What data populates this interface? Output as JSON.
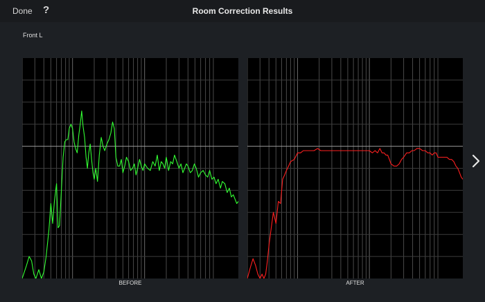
{
  "header": {
    "done_label": "Done",
    "help_label": "?",
    "title": "Room Correction Results"
  },
  "speaker": "Front L",
  "icons": {
    "next": "chevron-right-icon"
  },
  "colors": {
    "before_curve": "#33ff33",
    "after_curve": "#ff2020",
    "background": "#1d2024",
    "plot_bg": "#000000"
  },
  "chart_data": [
    {
      "type": "line",
      "caption": "BEFORE",
      "x_scale": "log",
      "xlim": [
        20,
        20000
      ],
      "ylim": [
        0,
        10
      ],
      "grid": true,
      "reference_line_y": 6,
      "series": [
        {
          "color": "#33ff33",
          "x": [
            20,
            23,
            25,
            27,
            29,
            31,
            34,
            37,
            40,
            43,
            47,
            50,
            53,
            56,
            60,
            63,
            66,
            70,
            74,
            78,
            82,
            86,
            90,
            95,
            100,
            105,
            110,
            116,
            122,
            128,
            134,
            140,
            147,
            154,
            161,
            168,
            176,
            184,
            192,
            200,
            210,
            222,
            235,
            250,
            265,
            280,
            300,
            320,
            340,
            360,
            380,
            400,
            425,
            450,
            475,
            500,
            530,
            560,
            600,
            640,
            680,
            720,
            760,
            800,
            850,
            900,
            950,
            1000,
            1100,
            1200,
            1300,
            1400,
            1500,
            1600,
            1700,
            1800,
            1900,
            2000,
            2150,
            2300,
            2450,
            2600,
            2800,
            3000,
            3200,
            3400,
            3600,
            3800,
            4000,
            4300,
            4600,
            4900,
            5200,
            5600,
            6000,
            6500,
            7000,
            7500,
            8000,
            8600,
            9200,
            9800,
            10500,
            11300,
            12000,
            13000,
            14000,
            15000,
            16000,
            17000,
            18000,
            19000,
            20000
          ],
          "y": [
            0.0,
            0.6,
            1.0,
            0.8,
            0.2,
            0.0,
            0.4,
            0.0,
            0.3,
            1.0,
            2.2,
            3.4,
            2.5,
            3.5,
            4.3,
            2.3,
            2.4,
            4.0,
            5.5,
            6.2,
            6.3,
            6.3,
            6.8,
            7.0,
            6.8,
            6.2,
            5.9,
            5.7,
            6.5,
            7.0,
            7.6,
            6.9,
            6.4,
            5.5,
            5.0,
            5.7,
            6.1,
            5.4,
            4.8,
            4.5,
            5.0,
            4.4,
            5.6,
            6.4,
            6.0,
            5.8,
            6.1,
            6.3,
            6.6,
            7.1,
            6.8,
            5.5,
            5.1,
            5.1,
            5.4,
            4.8,
            5.1,
            5.5,
            5.3,
            4.9,
            5.0,
            5.2,
            4.7,
            5.0,
            5.4,
            5.1,
            4.9,
            5.2,
            5.0,
            4.9,
            5.3,
            5.1,
            5.6,
            4.9,
            5.3,
            5.2,
            5.0,
            5.5,
            4.9,
            5.3,
            5.2,
            5.6,
            5.3,
            5.0,
            5.2,
            4.8,
            5.0,
            5.2,
            5.1,
            4.8,
            4.9,
            5.2,
            5.0,
            4.6,
            4.8,
            4.9,
            4.7,
            4.6,
            4.9,
            4.5,
            4.6,
            4.3,
            4.5,
            4.1,
            4.4,
            4.3,
            3.9,
            4.1,
            3.7,
            3.8,
            3.6,
            3.4,
            3.5
          ]
        }
      ]
    },
    {
      "type": "line",
      "caption": "AFTER",
      "x_scale": "log",
      "xlim": [
        20,
        20000
      ],
      "ylim": [
        0,
        10
      ],
      "grid": true,
      "reference_line_y": 6,
      "series": [
        {
          "color": "#ff2020",
          "x": [
            20,
            22,
            24,
            26,
            28,
            30,
            32,
            34,
            36,
            38,
            40,
            43,
            46,
            50,
            54,
            58,
            62,
            66,
            70,
            75,
            80,
            90,
            100,
            110,
            120,
            135,
            150,
            170,
            190,
            210,
            240,
            270,
            300,
            350,
            400,
            450,
            500,
            550,
            600,
            650,
            700,
            750,
            800,
            850,
            900,
            950,
            1000,
            1100,
            1200,
            1300,
            1400,
            1500,
            1600,
            1700,
            1800,
            1900,
            2000,
            2200,
            2400,
            2600,
            2800,
            3000,
            3300,
            3600,
            3900,
            4200,
            4600,
            5000,
            5500,
            6000,
            6500,
            7000,
            7500,
            8000,
            8500,
            9000,
            9500,
            10000,
            11000,
            12000,
            13000,
            14000,
            15000,
            16000,
            17000,
            18000,
            19000,
            20000
          ],
          "y": [
            0.0,
            0.5,
            0.9,
            0.6,
            0.2,
            0.0,
            0.2,
            0.0,
            0.2,
            0.8,
            1.5,
            2.3,
            3.0,
            2.5,
            3.5,
            3.4,
            4.5,
            4.7,
            4.9,
            5.1,
            5.3,
            5.4,
            5.7,
            5.7,
            5.8,
            5.8,
            5.8,
            5.8,
            5.9,
            5.8,
            5.8,
            5.8,
            5.8,
            5.8,
            5.8,
            5.8,
            5.8,
            5.8,
            5.8,
            5.8,
            5.8,
            5.8,
            5.8,
            5.8,
            5.8,
            5.8,
            5.8,
            5.7,
            5.8,
            5.7,
            5.9,
            5.7,
            5.7,
            5.6,
            5.6,
            5.4,
            5.2,
            5.1,
            5.1,
            5.2,
            5.4,
            5.5,
            5.7,
            5.7,
            5.8,
            5.8,
            5.9,
            5.9,
            5.8,
            5.8,
            5.7,
            5.7,
            5.6,
            5.7,
            5.7,
            5.5,
            5.5,
            5.5,
            5.5,
            5.5,
            5.4,
            5.4,
            5.3,
            5.1,
            5.0,
            4.8,
            4.6,
            4.5
          ]
        }
      ]
    }
  ],
  "captions": {
    "before": "BEFORE",
    "after": "AFTER"
  }
}
